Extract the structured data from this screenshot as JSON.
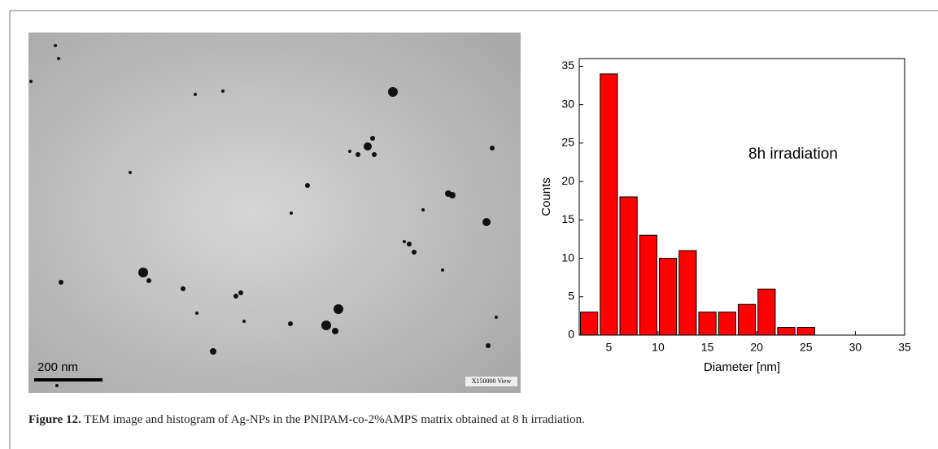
{
  "figure": {
    "label": "Figure 12.",
    "caption": "TEM image and histogram of Ag-NPs in the PNIPAM-co-2%AMPS matrix obtained at 8 h irradiation.",
    "scale_bar": "200 nm",
    "stamp": "X150000 View"
  },
  "chart_data": {
    "type": "histogram",
    "annotation": "8h irradiation",
    "xlabel": "Diameter [nm]",
    "ylabel": "Counts",
    "bins": [
      2,
      4,
      6,
      8,
      10,
      12,
      14,
      16,
      18,
      20,
      22,
      24,
      26,
      28,
      30,
      32,
      34
    ],
    "values": [
      3,
      34,
      18,
      13,
      10,
      11,
      3,
      3,
      4,
      6,
      1,
      1,
      0,
      0,
      0,
      0
    ],
    "color": "#ff0000",
    "xlim": [
      2,
      35
    ],
    "xticks": [
      5,
      10,
      15,
      20,
      25,
      30,
      35
    ],
    "ylim": [
      0,
      36
    ],
    "yticks": [
      0,
      5,
      10,
      15,
      20,
      25,
      30,
      35
    ]
  }
}
